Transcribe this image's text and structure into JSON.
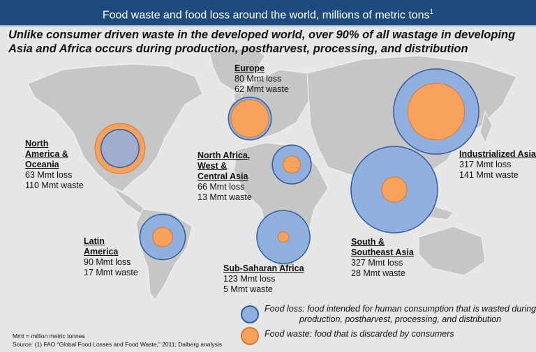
{
  "header": {
    "title": "Food waste and food loss around the world, millions of metric tons",
    "superscript": "1"
  },
  "subtitle": "Unlike consumer driven waste in the developed world, over 90% of all wastage in developing Asia and Africa occurs during production, postharvest, processing, and distribution",
  "colors": {
    "header": "#1f4a7e",
    "food_loss": "#8fb0df",
    "food_loss_border": "#2f5d9a",
    "food_waste": "#f6a25c",
    "food_waste_border": "#d9782d",
    "land": "#c6c6c6",
    "background": "#e6e6e6"
  },
  "regions": [
    {
      "id": "north-america",
      "name_lines": [
        "North",
        "America &",
        "Oceania"
      ],
      "loss": 63,
      "waste": 110,
      "loss_text": "63 Mmt loss",
      "waste_text": "110 Mmt waste"
    },
    {
      "id": "europe",
      "name_lines": [
        "Europe"
      ],
      "loss": 80,
      "waste": 62,
      "loss_text": "80 Mmt loss",
      "waste_text": "62 Mmt waste"
    },
    {
      "id": "north-africa",
      "name_lines": [
        "North Africa,",
        "West &",
        "Central Asia"
      ],
      "loss": 66,
      "waste": 13,
      "loss_text": "66 Mmt loss",
      "waste_text": "13 Mmt waste"
    },
    {
      "id": "industrialized-asia",
      "name_lines": [
        "Industrialized Asia"
      ],
      "loss": 317,
      "waste": 141,
      "loss_text": "317 Mmt loss",
      "waste_text": "141 Mmt waste"
    },
    {
      "id": "latin-america",
      "name_lines": [
        "Latin",
        "America"
      ],
      "loss": 90,
      "waste": 17,
      "loss_text": "90 Mmt loss",
      "waste_text": "17 Mmt waste"
    },
    {
      "id": "sub-saharan-africa",
      "name_lines": [
        "Sub-Saharan Africa"
      ],
      "loss": 123,
      "waste": 5,
      "loss_text": "123 Mmt loss",
      "waste_text": "5 Mmt waste"
    },
    {
      "id": "south-asia",
      "name_lines": [
        "South &",
        "Southeast Asia"
      ],
      "loss": 327,
      "waste": 28,
      "loss_text": "327 Mmt loss",
      "waste_text": "28 Mmt waste"
    }
  ],
  "legend": {
    "loss_line1": "Food loss: food intended for human consumption that is wasted during",
    "loss_line2": "production, postharvest, processing, and distribution",
    "waste": "Food waste: food that is discarded by consumers"
  },
  "footer": {
    "note": "Mmt = million metric tonnes",
    "source": "Source: (1) FAO “Global Food Losses and Food Waste,” 2011; Dalberg analysis"
  }
}
